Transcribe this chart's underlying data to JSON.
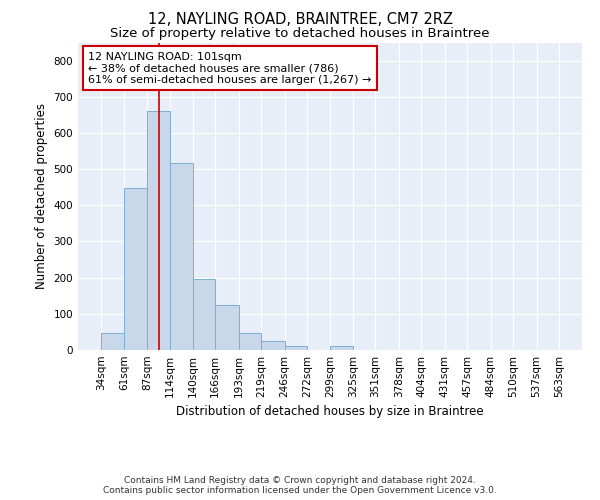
{
  "title": "12, NAYLING ROAD, BRAINTREE, CM7 2RZ",
  "subtitle": "Size of property relative to detached houses in Braintree",
  "xlabel": "Distribution of detached houses by size in Braintree",
  "ylabel": "Number of detached properties",
  "footer_line1": "Contains HM Land Registry data © Crown copyright and database right 2024.",
  "footer_line2": "Contains public sector information licensed under the Open Government Licence v3.0.",
  "bin_edges": [
    34,
    61,
    87,
    114,
    140,
    166,
    193,
    219,
    246,
    272,
    299,
    325,
    351,
    378,
    404,
    431,
    457,
    484,
    510,
    537,
    563
  ],
  "bar_heights": [
    47,
    447,
    660,
    516,
    196,
    125,
    47,
    25,
    10,
    0,
    10,
    0,
    0,
    0,
    0,
    0,
    0,
    0,
    0,
    0
  ],
  "bar_color": "#c8d8ea",
  "bar_edge_color": "#7aafd4",
  "bar_edge_width": 0.7,
  "red_line_x": 101,
  "red_line_color": "#cc0000",
  "annotation_line1": "12 NAYLING ROAD: 101sqm",
  "annotation_line2": "← 38% of detached houses are smaller (786)",
  "annotation_line3": "61% of semi-detached houses are larger (1,267) →",
  "annotation_box_color": "#ffffff",
  "annotation_box_edge_color": "#cc0000",
  "ylim": [
    0,
    850
  ],
  "yticks": [
    0,
    100,
    200,
    300,
    400,
    500,
    600,
    700,
    800
  ],
  "bg_color": "#e8eef8",
  "grid_color": "#ffffff",
  "fig_bg_color": "#ffffff",
  "title_fontsize": 10.5,
  "subtitle_fontsize": 9.5,
  "axis_label_fontsize": 8.5,
  "tick_fontsize": 7.5,
  "annotation_fontsize": 8,
  "footer_fontsize": 6.5
}
